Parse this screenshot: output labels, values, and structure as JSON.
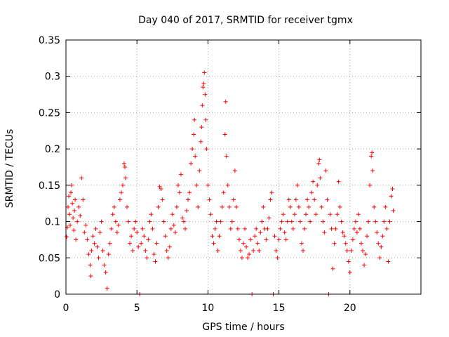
{
  "chart_data": {
    "type": "scatter",
    "title": "Day 040 of 2017, SRMTID for receiver tgmx",
    "xlabel": "GPS time / hours",
    "ylabel": "SRMTID / TECUs",
    "xlim": [
      0,
      25
    ],
    "ylim": [
      0,
      0.35
    ],
    "xticks": [
      0,
      5,
      10,
      15,
      20
    ],
    "xtick_labels": [
      "0",
      "5",
      "10",
      "15",
      "20"
    ],
    "yticks": [
      0,
      0.05,
      0.1,
      0.15,
      0.2,
      0.25,
      0.3,
      0.35
    ],
    "ytick_labels": [
      "0",
      "0.05",
      "0.1",
      "0.15",
      "0.2",
      "0.25",
      "0.3",
      "0.35"
    ],
    "grid": true,
    "marker": "+",
    "color": "#ff0000",
    "series": [
      {
        "name": "SRMTID",
        "points": [
          [
            0.05,
            0.079
          ],
          [
            0.1,
            0.092
          ],
          [
            0.15,
            0.12
          ],
          [
            0.2,
            0.135
          ],
          [
            0.25,
            0.11
          ],
          [
            0.3,
            0.095
          ],
          [
            0.35,
            0.14
          ],
          [
            0.4,
            0.15
          ],
          [
            0.45,
            0.125
          ],
          [
            0.5,
            0.105
          ],
          [
            0.55,
            0.088
          ],
          [
            0.6,
            0.115
          ],
          [
            0.65,
            0.13
          ],
          [
            0.7,
            0.075
          ],
          [
            0.8,
            0.1
          ],
          [
            0.9,
            0.12
          ],
          [
            1.0,
            0.108
          ],
          [
            1.1,
            0.16
          ],
          [
            1.2,
            0.13
          ],
          [
            1.3,
            0.085
          ],
          [
            1.4,
            0.095
          ],
          [
            1.5,
            0.075
          ],
          [
            1.6,
            0.055
          ],
          [
            1.7,
            0.04
          ],
          [
            1.75,
            0.025
          ],
          [
            1.8,
            0.06
          ],
          [
            1.9,
            0.08
          ],
          [
            2.0,
            0.07
          ],
          [
            2.1,
            0.09
          ],
          [
            2.2,
            0.065
          ],
          [
            2.3,
            0.05
          ],
          [
            2.4,
            0.085
          ],
          [
            2.5,
            0.1
          ],
          [
            2.6,
            0.06
          ],
          [
            2.7,
            0.04
          ],
          [
            2.8,
            0.03
          ],
          [
            2.9,
            0.008
          ],
          [
            3.0,
            0.055
          ],
          [
            3.1,
            0.07
          ],
          [
            3.2,
            0.09
          ],
          [
            3.3,
            0.11
          ],
          [
            3.4,
            0.12
          ],
          [
            3.5,
            0.1
          ],
          [
            3.6,
            0.085
          ],
          [
            3.7,
            0.095
          ],
          [
            3.8,
            0.13
          ],
          [
            3.9,
            0.14
          ],
          [
            4.0,
            0.15
          ],
          [
            4.1,
            0.18
          ],
          [
            4.15,
            0.175
          ],
          [
            4.2,
            0.16
          ],
          [
            4.3,
            0.12
          ],
          [
            4.4,
            0.1
          ],
          [
            4.5,
            0.07
          ],
          [
            4.6,
            0.08
          ],
          [
            4.7,
            0.06
          ],
          [
            4.8,
            0.09
          ],
          [
            4.9,
            0.1
          ],
          [
            5.0,
            0.085
          ],
          [
            5.1,
            0.065
          ],
          [
            5.2,
            0.0
          ],
          [
            5.3,
            0.07
          ],
          [
            5.4,
            0.09
          ],
          [
            5.5,
            0.08
          ],
          [
            5.6,
            0.06
          ],
          [
            5.7,
            0.05
          ],
          [
            5.8,
            0.075
          ],
          [
            5.9,
            0.1
          ],
          [
            6.0,
            0.11
          ],
          [
            6.1,
            0.09
          ],
          [
            6.2,
            0.055
          ],
          [
            6.3,
            0.045
          ],
          [
            6.4,
            0.07
          ],
          [
            6.5,
            0.12
          ],
          [
            6.6,
            0.148
          ],
          [
            6.7,
            0.145
          ],
          [
            6.8,
            0.13
          ],
          [
            6.9,
            0.1
          ],
          [
            7.0,
            0.08
          ],
          [
            7.1,
            0.06
          ],
          [
            7.2,
            0.05
          ],
          [
            7.3,
            0.065
          ],
          [
            7.4,
            0.09
          ],
          [
            7.5,
            0.11
          ],
          [
            7.6,
            0.095
          ],
          [
            7.7,
            0.085
          ],
          [
            7.8,
            0.12
          ],
          [
            7.9,
            0.15
          ],
          [
            8.0,
            0.14
          ],
          [
            8.1,
            0.165
          ],
          [
            8.2,
            0.105
          ],
          [
            8.3,
            0.1
          ],
          [
            8.4,
            0.09
          ],
          [
            8.5,
            0.115
          ],
          [
            8.6,
            0.13
          ],
          [
            8.7,
            0.14
          ],
          [
            8.8,
            0.18
          ],
          [
            8.9,
            0.2
          ],
          [
            9.0,
            0.22
          ],
          [
            9.05,
            0.24
          ],
          [
            9.1,
            0.19
          ],
          [
            9.2,
            0.15
          ],
          [
            9.3,
            0.12
          ],
          [
            9.4,
            0.17
          ],
          [
            9.5,
            0.21
          ],
          [
            9.55,
            0.23
          ],
          [
            9.6,
            0.26
          ],
          [
            9.65,
            0.285
          ],
          [
            9.7,
            0.29
          ],
          [
            9.75,
            0.305
          ],
          [
            9.8,
            0.275
          ],
          [
            9.85,
            0.24
          ],
          [
            9.9,
            0.2
          ],
          [
            10.0,
            0.15
          ],
          [
            10.1,
            0.13
          ],
          [
            10.2,
            0.11
          ],
          [
            10.3,
            0.08
          ],
          [
            10.4,
            0.07
          ],
          [
            10.5,
            0.09
          ],
          [
            10.6,
            0.1
          ],
          [
            10.7,
            0.06
          ],
          [
            10.8,
            0.08
          ],
          [
            10.9,
            0.1
          ],
          [
            11.0,
            0.12
          ],
          [
            11.1,
            0.14
          ],
          [
            11.2,
            0.22
          ],
          [
            11.25,
            0.265
          ],
          [
            11.3,
            0.19
          ],
          [
            11.4,
            0.15
          ],
          [
            11.5,
            0.12
          ],
          [
            11.6,
            0.09
          ],
          [
            11.7,
            0.1
          ],
          [
            11.8,
            0.13
          ],
          [
            11.9,
            0.17
          ],
          [
            12.0,
            0.12
          ],
          [
            12.1,
            0.09
          ],
          [
            12.2,
            0.075
          ],
          [
            12.3,
            0.06
          ],
          [
            12.4,
            0.05
          ],
          [
            12.5,
            0.07
          ],
          [
            12.6,
            0.09
          ],
          [
            12.7,
            0.065
          ],
          [
            12.8,
            0.05
          ],
          [
            12.9,
            0.055
          ],
          [
            13.0,
            0.075
          ],
          [
            13.1,
            0.0
          ],
          [
            13.2,
            0.06
          ],
          [
            13.3,
            0.08
          ],
          [
            13.4,
            0.09
          ],
          [
            13.5,
            0.07
          ],
          [
            13.6,
            0.06
          ],
          [
            13.7,
            0.085
          ],
          [
            13.8,
            0.1
          ],
          [
            13.9,
            0.12
          ],
          [
            14.0,
            0.09
          ],
          [
            14.1,
            0.075
          ],
          [
            14.2,
            0.09
          ],
          [
            14.3,
            0.105
          ],
          [
            14.4,
            0.13
          ],
          [
            14.5,
            0.14
          ],
          [
            14.6,
            0.0
          ],
          [
            14.7,
            0.08
          ],
          [
            14.8,
            0.06
          ],
          [
            14.9,
            0.05
          ],
          [
            15.0,
            0.075
          ],
          [
            15.1,
            0.09
          ],
          [
            15.2,
            0.1
          ],
          [
            15.3,
            0.11
          ],
          [
            15.4,
            0.085
          ],
          [
            15.5,
            0.075
          ],
          [
            15.6,
            0.1
          ],
          [
            15.7,
            0.13
          ],
          [
            15.8,
            0.12
          ],
          [
            15.9,
            0.1
          ],
          [
            16.0,
            0.09
          ],
          [
            16.1,
            0.11
          ],
          [
            16.2,
            0.13
          ],
          [
            16.3,
            0.15
          ],
          [
            16.4,
            0.12
          ],
          [
            16.5,
            0.1
          ],
          [
            16.6,
            0.07
          ],
          [
            16.7,
            0.06
          ],
          [
            16.8,
            0.09
          ],
          [
            16.9,
            0.11
          ],
          [
            17.0,
            0.13
          ],
          [
            17.1,
            0.12
          ],
          [
            17.2,
            0.1
          ],
          [
            17.3,
            0.14
          ],
          [
            17.4,
            0.155
          ],
          [
            17.5,
            0.13
          ],
          [
            17.6,
            0.11
          ],
          [
            17.7,
            0.15
          ],
          [
            17.8,
            0.18
          ],
          [
            17.85,
            0.185
          ],
          [
            17.9,
            0.16
          ],
          [
            18.0,
            0.12
          ],
          [
            18.1,
            0.1
          ],
          [
            18.2,
            0.085
          ],
          [
            18.3,
            0.17
          ],
          [
            18.4,
            0.13
          ],
          [
            18.5,
            0.0
          ],
          [
            18.6,
            0.11
          ],
          [
            18.7,
            0.09
          ],
          [
            18.8,
            0.035
          ],
          [
            18.9,
            0.07
          ],
          [
            19.0,
            0.09
          ],
          [
            19.1,
            0.11
          ],
          [
            19.2,
            0.155
          ],
          [
            19.3,
            0.12
          ],
          [
            19.4,
            0.1
          ],
          [
            19.5,
            0.085
          ],
          [
            19.6,
            0.08
          ],
          [
            19.7,
            0.07
          ],
          [
            19.8,
            0.06
          ],
          [
            19.9,
            0.045
          ],
          [
            20.0,
            0.03
          ],
          [
            20.1,
            0.06
          ],
          [
            20.2,
            0.075
          ],
          [
            20.3,
            0.09
          ],
          [
            20.4,
            0.1
          ],
          [
            20.5,
            0.085
          ],
          [
            20.6,
            0.11
          ],
          [
            20.7,
            0.09
          ],
          [
            20.8,
            0.07
          ],
          [
            20.9,
            0.06
          ],
          [
            21.0,
            0.04
          ],
          [
            21.1,
            0.055
          ],
          [
            21.2,
            0.08
          ],
          [
            21.3,
            0.1
          ],
          [
            21.4,
            0.15
          ],
          [
            21.5,
            0.19
          ],
          [
            21.55,
            0.195
          ],
          [
            21.6,
            0.17
          ],
          [
            21.7,
            0.12
          ],
          [
            21.8,
            0.1
          ],
          [
            21.9,
            0.085
          ],
          [
            22.0,
            0.07
          ],
          [
            22.1,
            0.05
          ],
          [
            22.2,
            0.065
          ],
          [
            22.3,
            0.08
          ],
          [
            22.4,
            0.1
          ],
          [
            22.5,
            0.12
          ],
          [
            22.6,
            0.09
          ],
          [
            22.7,
            0.045
          ],
          [
            22.8,
            0.1
          ],
          [
            22.9,
            0.135
          ],
          [
            23.0,
            0.145
          ],
          [
            23.05,
            0.115
          ]
        ]
      }
    ]
  }
}
